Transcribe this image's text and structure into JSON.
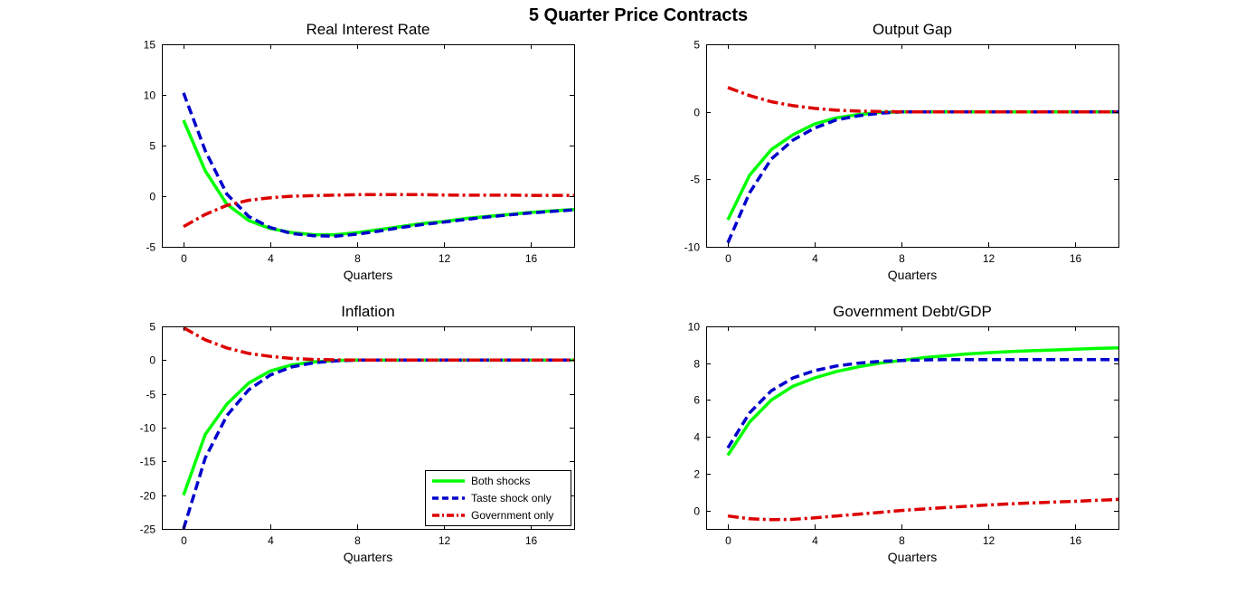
{
  "figure": {
    "title": "5 Quarter Price Contracts"
  },
  "colors": {
    "both": "#00ff00",
    "taste": "#0000cc",
    "government": "#dd0000"
  },
  "chart_data": [
    {
      "type": "line",
      "title": "Real Interest Rate",
      "xlabel": "Quarters",
      "ylabel": "",
      "xlim": [
        -1,
        18
      ],
      "ylim": [
        -5,
        15
      ],
      "xticks": [
        0,
        4,
        8,
        12,
        16
      ],
      "yticks": [
        -5,
        0,
        5,
        10,
        15
      ],
      "x": [
        0,
        1,
        2,
        3,
        4,
        5,
        6,
        7,
        8,
        9,
        10,
        11,
        12,
        13,
        14,
        15,
        16,
        17,
        18
      ],
      "series": [
        {
          "name": "Both shocks",
          "style": "solid",
          "color": "#00ff00",
          "values": [
            7.5,
            2.5,
            -0.8,
            -2.4,
            -3.2,
            -3.6,
            -3.8,
            -3.8,
            -3.6,
            -3.3,
            -3.0,
            -2.7,
            -2.5,
            -2.2,
            -2.0,
            -1.8,
            -1.6,
            -1.45,
            -1.3
          ]
        },
        {
          "name": "Taste shock only",
          "style": "dashed",
          "color": "#0000cc",
          "values": [
            10.2,
            4.5,
            0.2,
            -2.0,
            -3.1,
            -3.7,
            -3.9,
            -3.95,
            -3.75,
            -3.45,
            -3.1,
            -2.8,
            -2.55,
            -2.3,
            -2.05,
            -1.85,
            -1.65,
            -1.5,
            -1.35
          ]
        },
        {
          "name": "Government only",
          "style": "dashdot",
          "color": "#dd0000",
          "values": [
            -3.0,
            -1.8,
            -0.9,
            -0.4,
            -0.15,
            0.0,
            0.05,
            0.1,
            0.15,
            0.15,
            0.15,
            0.15,
            0.12,
            0.1,
            0.1,
            0.1,
            0.08,
            0.08,
            0.08
          ]
        }
      ]
    },
    {
      "type": "line",
      "title": "Output Gap",
      "xlabel": "Quarters",
      "ylabel": "",
      "xlim": [
        -1,
        18
      ],
      "ylim": [
        -10,
        5
      ],
      "xticks": [
        0,
        4,
        8,
        12,
        16
      ],
      "yticks": [
        -10,
        -5,
        0,
        5
      ],
      "x": [
        0,
        1,
        2,
        3,
        4,
        5,
        6,
        7,
        8,
        9,
        10,
        11,
        12,
        13,
        14,
        15,
        16,
        17,
        18
      ],
      "series": [
        {
          "name": "Both shocks",
          "style": "solid",
          "color": "#00ff00",
          "values": [
            -8.0,
            -4.7,
            -2.8,
            -1.7,
            -0.9,
            -0.45,
            -0.2,
            -0.05,
            0,
            0,
            0,
            0,
            0,
            0,
            0,
            0,
            0,
            0,
            0
          ]
        },
        {
          "name": "Taste shock only",
          "style": "dashed",
          "color": "#0000cc",
          "values": [
            -9.7,
            -6.0,
            -3.5,
            -2.1,
            -1.2,
            -0.6,
            -0.3,
            -0.1,
            0,
            0,
            0,
            0,
            0,
            0,
            0,
            0,
            0,
            0,
            0
          ]
        },
        {
          "name": "Government only",
          "style": "dashdot",
          "color": "#dd0000",
          "values": [
            1.8,
            1.2,
            0.75,
            0.45,
            0.25,
            0.12,
            0.05,
            0.02,
            0,
            0,
            0,
            0,
            0,
            0,
            0,
            0,
            0,
            0,
            0
          ]
        }
      ]
    },
    {
      "type": "line",
      "title": "Inflation",
      "xlabel": "Quarters",
      "ylabel": "",
      "xlim": [
        -1,
        18
      ],
      "ylim": [
        -25,
        5
      ],
      "xticks": [
        0,
        4,
        8,
        12,
        16
      ],
      "yticks": [
        -25,
        -20,
        -15,
        -10,
        -5,
        0,
        5
      ],
      "x": [
        0,
        1,
        2,
        3,
        4,
        5,
        6,
        7,
        8,
        9,
        10,
        11,
        12,
        13,
        14,
        15,
        16,
        17,
        18
      ],
      "legend": {
        "position": "bottom-right",
        "entries": [
          "Both shocks",
          "Taste shock only",
          "Government only"
        ]
      },
      "series": [
        {
          "name": "Both shocks",
          "style": "solid",
          "color": "#00ff00",
          "values": [
            -20.0,
            -11.0,
            -6.5,
            -3.4,
            -1.6,
            -0.7,
            -0.25,
            -0.05,
            0,
            0,
            0,
            0,
            0,
            0,
            0,
            0,
            0,
            0,
            0
          ]
        },
        {
          "name": "Taste shock only",
          "style": "dashed",
          "color": "#0000cc",
          "values": [
            -25.0,
            -14.5,
            -8.2,
            -4.4,
            -2.2,
            -1.0,
            -0.4,
            -0.1,
            0,
            0,
            0,
            0,
            0,
            0,
            0,
            0,
            0,
            0,
            0
          ]
        },
        {
          "name": "Government only",
          "style": "dashdot",
          "color": "#dd0000",
          "values": [
            4.8,
            3.0,
            1.8,
            1.0,
            0.55,
            0.25,
            0.1,
            0.04,
            0,
            0,
            0,
            0,
            0,
            0,
            0,
            0,
            0,
            0,
            0
          ]
        }
      ]
    },
    {
      "type": "line",
      "title": "Government Debt/GDP",
      "xlabel": "Quarters",
      "ylabel": "",
      "xlim": [
        -1,
        18
      ],
      "ylim": [
        -1,
        10
      ],
      "xticks": [
        0,
        4,
        8,
        12,
        16
      ],
      "yticks": [
        0,
        2,
        4,
        6,
        8,
        10
      ],
      "x": [
        0,
        1,
        2,
        3,
        4,
        5,
        6,
        7,
        8,
        9,
        10,
        11,
        12,
        13,
        14,
        15,
        16,
        17,
        18
      ],
      "series": [
        {
          "name": "Both shocks",
          "style": "solid",
          "color": "#00ff00",
          "values": [
            3.0,
            4.8,
            6.0,
            6.75,
            7.2,
            7.55,
            7.8,
            8.0,
            8.15,
            8.3,
            8.4,
            8.5,
            8.57,
            8.63,
            8.68,
            8.72,
            8.76,
            8.8,
            8.83
          ]
        },
        {
          "name": "Taste shock only",
          "style": "dashed",
          "color": "#0000cc",
          "values": [
            3.4,
            5.3,
            6.5,
            7.2,
            7.6,
            7.85,
            8.0,
            8.1,
            8.15,
            8.18,
            8.2,
            8.2,
            8.2,
            8.2,
            8.2,
            8.2,
            8.2,
            8.2,
            8.2
          ]
        },
        {
          "name": "Government only",
          "style": "dashdot",
          "color": "#dd0000",
          "values": [
            -0.3,
            -0.45,
            -0.5,
            -0.48,
            -0.4,
            -0.3,
            -0.2,
            -0.1,
            0.0,
            0.08,
            0.16,
            0.23,
            0.3,
            0.36,
            0.41,
            0.46,
            0.5,
            0.55,
            0.6
          ]
        }
      ]
    }
  ]
}
